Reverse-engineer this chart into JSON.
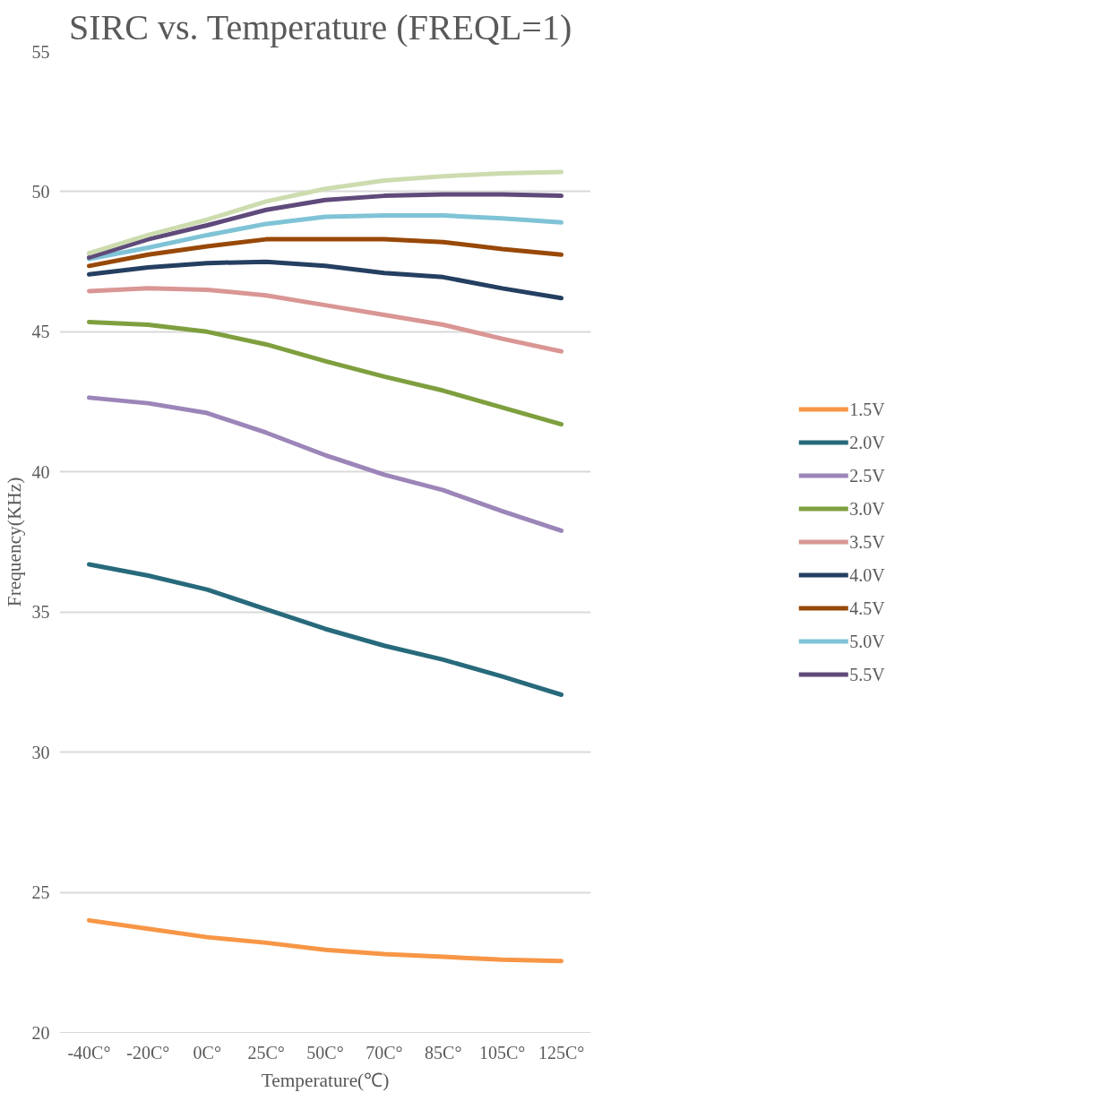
{
  "chart_data": {
    "type": "line",
    "title": "SIRC vs. Temperature  (FREQL=1)",
    "xlabel": "Temperature(℃)",
    "ylabel": "Frequency(KHz)",
    "categories": [
      "-40C°",
      "-20C°",
      "0C°",
      "25C°",
      "50C°",
      "70C°",
      "85C°",
      "105C°",
      "125C°"
    ],
    "ylim": [
      20,
      55
    ],
    "yticks": [
      20,
      25,
      30,
      35,
      40,
      45,
      50,
      55
    ],
    "grid": "y",
    "legend": "right",
    "line_style": "solid",
    "marker": "none",
    "series": [
      {
        "name": "1.5V",
        "color": "#f79646",
        "values": [
          24.0,
          23.7,
          23.4,
          23.2,
          22.95,
          22.8,
          22.7,
          22.6,
          22.55
        ]
      },
      {
        "name": "2.0V",
        "color": "#276a7c",
        "values": [
          36.7,
          36.3,
          35.8,
          35.1,
          34.4,
          33.8,
          33.3,
          32.7,
          32.05
        ]
      },
      {
        "name": "2.5V",
        "color": "#9c85b8",
        "values": [
          42.65,
          42.45,
          42.1,
          41.4,
          40.6,
          39.9,
          39.35,
          38.6,
          37.9
        ]
      },
      {
        "name": "3.0V",
        "color": "#7f9f3f",
        "values": [
          45.35,
          45.25,
          45.0,
          44.55,
          43.95,
          43.4,
          42.9,
          42.3,
          41.7
        ]
      },
      {
        "name": "3.5V",
        "color": "#d99694",
        "values": [
          46.45,
          46.55,
          46.5,
          46.3,
          45.95,
          45.6,
          45.25,
          44.75,
          44.3
        ]
      },
      {
        "name": "4.0V",
        "color": "#243f60",
        "values": [
          47.05,
          47.3,
          47.45,
          47.5,
          47.35,
          47.1,
          46.95,
          46.55,
          46.2
        ]
      },
      {
        "name": "4.5V",
        "color": "#984807",
        "values": [
          47.35,
          47.75,
          48.05,
          48.3,
          48.3,
          48.3,
          48.2,
          47.95,
          47.75
        ]
      },
      {
        "name": "5.0V",
        "color": "#7fc3d6",
        "values": [
          47.6,
          48.0,
          48.45,
          48.85,
          49.1,
          49.15,
          49.15,
          49.05,
          48.9
        ]
      },
      {
        "name": "5.5V",
        "color": "#5f4a7b",
        "values": [
          47.65,
          48.3,
          48.8,
          49.35,
          49.7,
          49.85,
          49.9,
          49.9,
          49.85
        ]
      },
      {
        "color": "#cddcaf",
        "values": [
          47.8,
          48.45,
          49.0,
          49.65,
          50.1,
          50.4,
          50.55,
          50.65,
          50.7
        ]
      }
    ]
  }
}
